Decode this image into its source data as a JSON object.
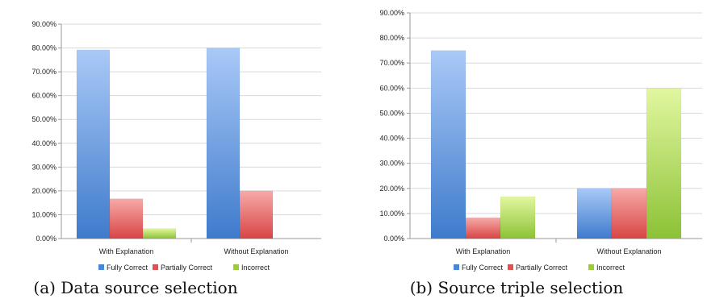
{
  "chart_data": [
    {
      "type": "bar",
      "caption": "(a) Data source selection",
      "categories": [
        "With Explanation",
        "Without Explanation"
      ],
      "series": [
        {
          "name": "Fully Correct",
          "values": [
            79.2,
            80.0
          ],
          "color": "#4a86d6"
        },
        {
          "name": "Partially Correct",
          "values": [
            16.7,
            20.0
          ],
          "color": "#e05252"
        },
        {
          "name": "Incorrect",
          "values": [
            4.2,
            0.0
          ],
          "color": "#9acc3c"
        }
      ],
      "ylim": [
        0,
        90
      ],
      "yticks": [
        "0.00%",
        "10.00%",
        "20.00%",
        "30.00%",
        "40.00%",
        "50.00%",
        "60.00%",
        "70.00%",
        "80.00%",
        "90.00%"
      ],
      "grid": true,
      "legend": "bottom"
    },
    {
      "type": "bar",
      "caption": "(b) Source triple selection",
      "categories": [
        "With Explanation",
        "Without Explanation"
      ],
      "series": [
        {
          "name": "Fully Correct",
          "values": [
            75.0,
            20.0
          ],
          "color": "#4a86d6"
        },
        {
          "name": "Partially Correct",
          "values": [
            8.3,
            20.0
          ],
          "color": "#e05252"
        },
        {
          "name": "Incorrect",
          "values": [
            16.7,
            60.0
          ],
          "color": "#9acc3c"
        }
      ],
      "ylim": [
        0,
        90
      ],
      "yticks": [
        "0.00%",
        "10.00%",
        "20.00%",
        "30.00%",
        "40.00%",
        "50.00%",
        "60.00%",
        "70.00%",
        "80.00%",
        "90.00%"
      ],
      "grid": true,
      "legend": "bottom"
    }
  ]
}
